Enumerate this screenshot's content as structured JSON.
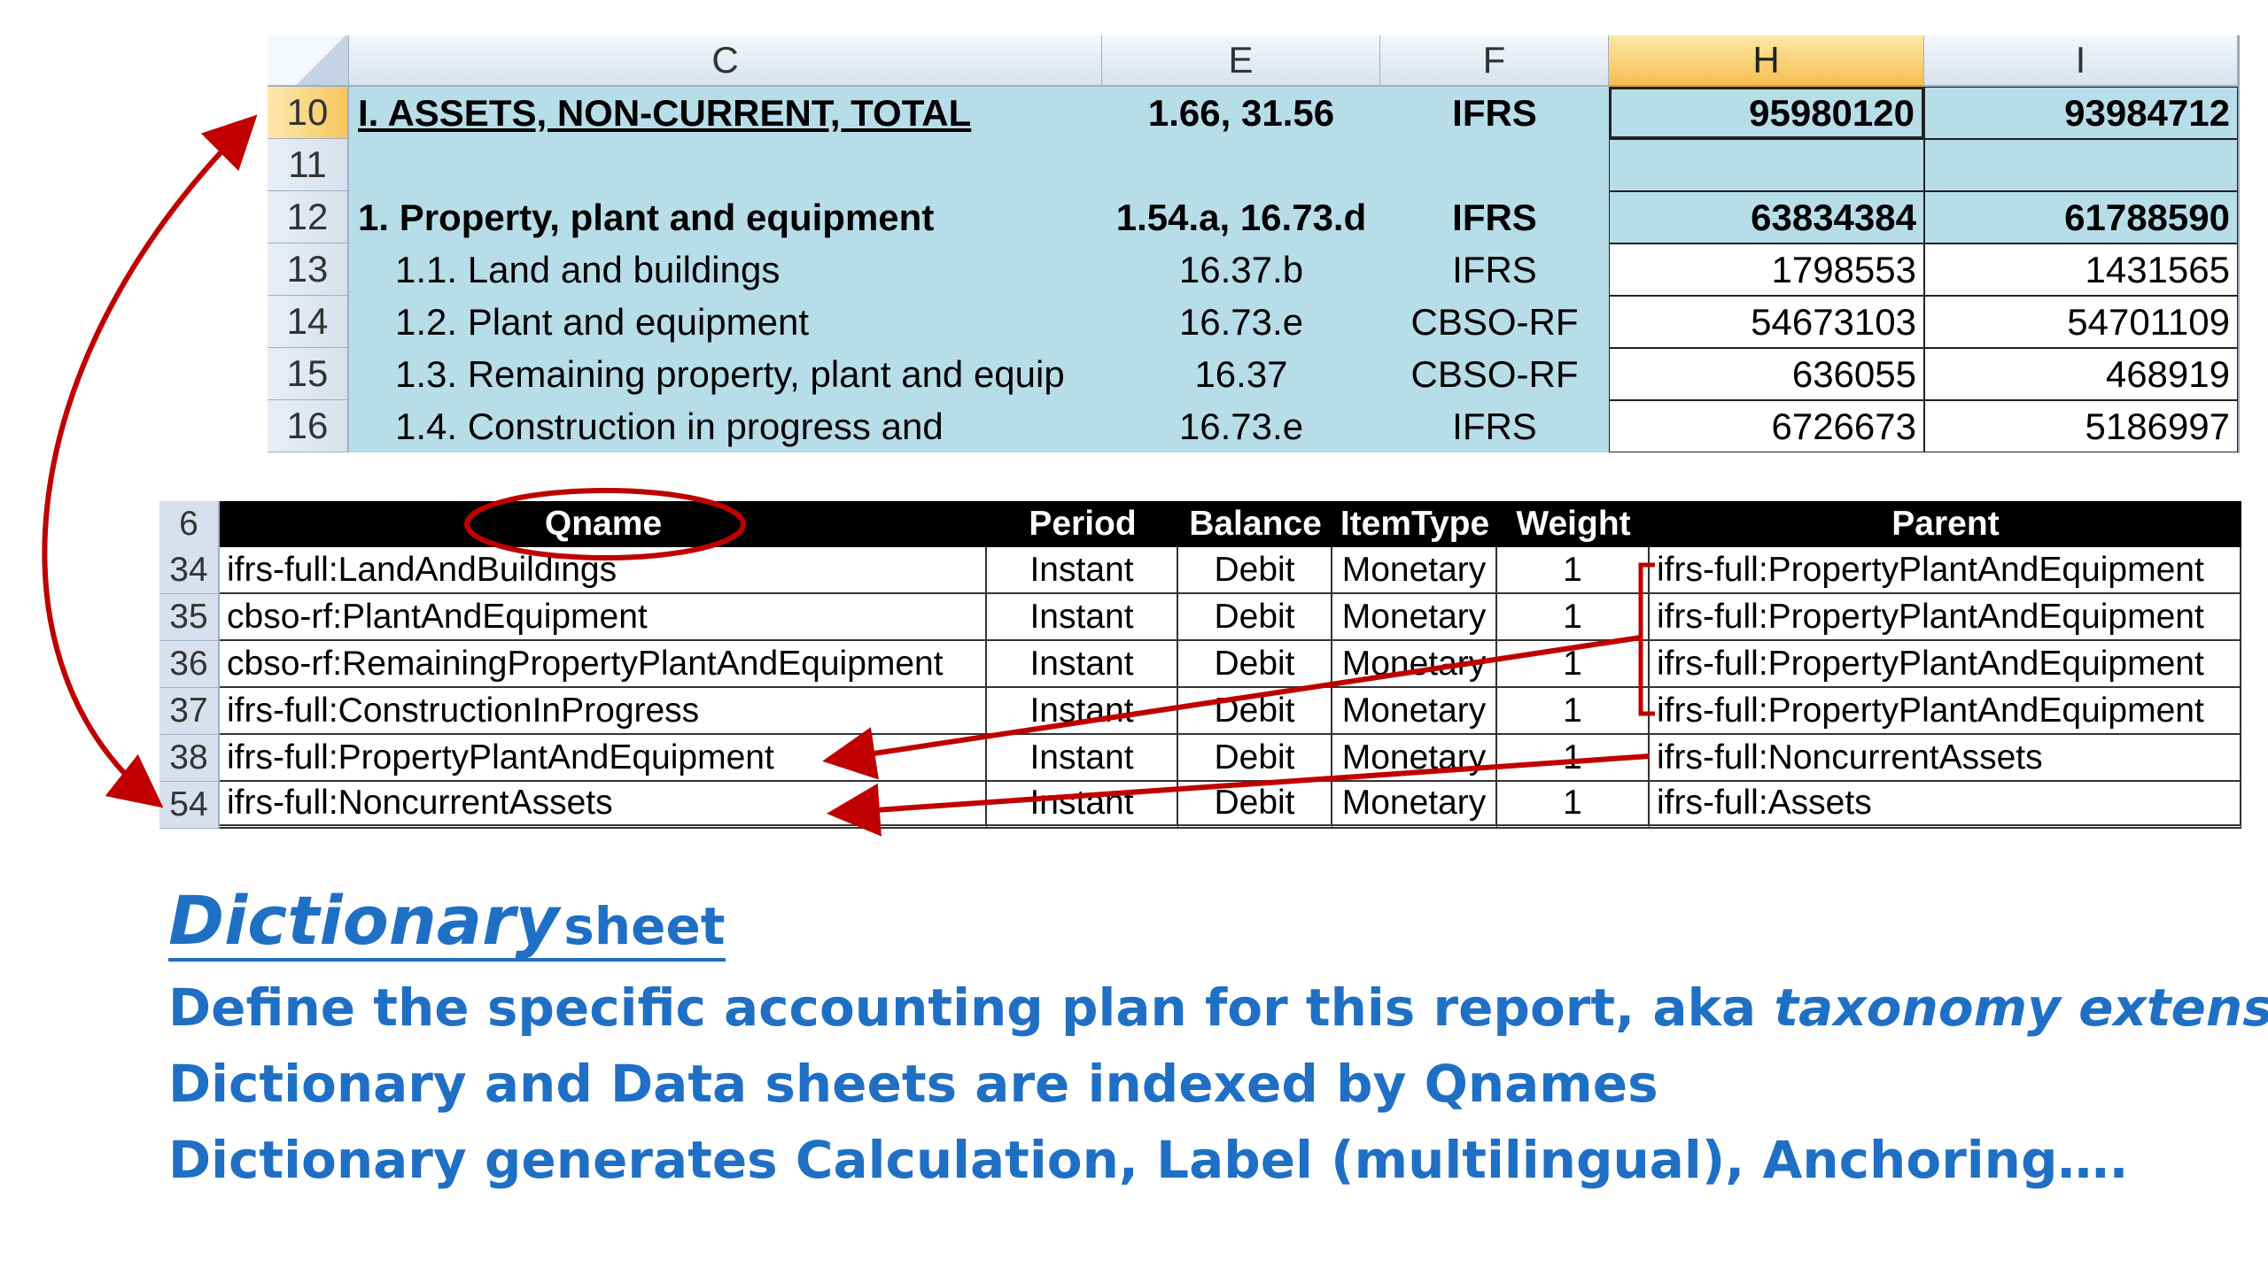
{
  "spreadsheet": {
    "columns": [
      "C",
      "E",
      "F",
      "H",
      "I"
    ],
    "selected_column": "H",
    "rows": [
      {
        "num": "10",
        "label": "I. ASSETS, NON-CURRENT, TOTAL",
        "ref": "1.66, 31.56",
        "source": "IFRS",
        "h": "95980120",
        "i": "93984712"
      },
      {
        "num": "11",
        "label": "",
        "ref": "",
        "source": "",
        "h": "",
        "i": ""
      },
      {
        "num": "12",
        "label": "1. Property, plant and equipment",
        "ref": "1.54.a, 16.73.d",
        "source": "IFRS",
        "h": "63834384",
        "i": "61788590"
      },
      {
        "num": "13",
        "label": "1.1. Land and buildings",
        "ref": "16.37.b",
        "source": "IFRS",
        "h": "1798553",
        "i": "1431565"
      },
      {
        "num": "14",
        "label": "1.2. Plant and equipment",
        "ref": "16.73.e",
        "source": "CBSO-RF",
        "h": "54673103",
        "i": "54701109"
      },
      {
        "num": "15",
        "label": "1.3. Remaining property, plant and equip",
        "ref": "16.37",
        "source": "CBSO-RF",
        "h": "636055",
        "i": "468919"
      },
      {
        "num": "16",
        "label": "1.4. Construction in progress and",
        "ref": "16.73.e",
        "source": "IFRS",
        "h": "6726673",
        "i": "5186997"
      }
    ]
  },
  "dictionary": {
    "header_row_num": "6",
    "headers": [
      "Qname",
      "Period",
      "Balance",
      "ItemType",
      "Weight",
      "Parent"
    ],
    "rows": [
      {
        "num": "34",
        "qname": "ifrs-full:LandAndBuildings",
        "period": "Instant",
        "balance": "Debit",
        "itemtype": "Monetary",
        "weight": "1",
        "parent": "ifrs-full:PropertyPlantAndEquipment"
      },
      {
        "num": "35",
        "qname": "cbso-rf:PlantAndEquipment",
        "period": "Instant",
        "balance": "Debit",
        "itemtype": "Monetary",
        "weight": "1",
        "parent": "ifrs-full:PropertyPlantAndEquipment"
      },
      {
        "num": "36",
        "qname": "cbso-rf:RemainingPropertyPlantAndEquipment",
        "period": "Instant",
        "balance": "Debit",
        "itemtype": "Monetary",
        "weight": "1",
        "parent": "ifrs-full:PropertyPlantAndEquipment"
      },
      {
        "num": "37",
        "qname": "ifrs-full:ConstructionInProgress",
        "period": "Instant",
        "balance": "Debit",
        "itemtype": "Monetary",
        "weight": "1",
        "parent": "ifrs-full:PropertyPlantAndEquipment"
      },
      {
        "num": "38",
        "qname": "ifrs-full:PropertyPlantAndEquipment",
        "period": "Instant",
        "balance": "Debit",
        "itemtype": "Monetary",
        "weight": "1",
        "parent": "ifrs-full:NoncurrentAssets"
      },
      {
        "num": "54",
        "qname": "ifrs-full:NoncurrentAssets",
        "period": "Instant",
        "balance": "Debit",
        "itemtype": "Monetary",
        "weight": "1",
        "parent": "ifrs-full:Assets"
      }
    ]
  },
  "caption": {
    "title_word": "Dictionary",
    "title_rest": "sheet",
    "line1_prefix": "Define the specific accounting plan for this report, aka ",
    "line1_emph": "taxonomy extension",
    "line2": "Dictionary and Data sheets are indexed by Qnames",
    "line3": "Dictionary generates Calculation, Label (multilingual), Anchoring…."
  },
  "annotation_color": "#c00000",
  "cell_fill_color": "#b7dde8"
}
